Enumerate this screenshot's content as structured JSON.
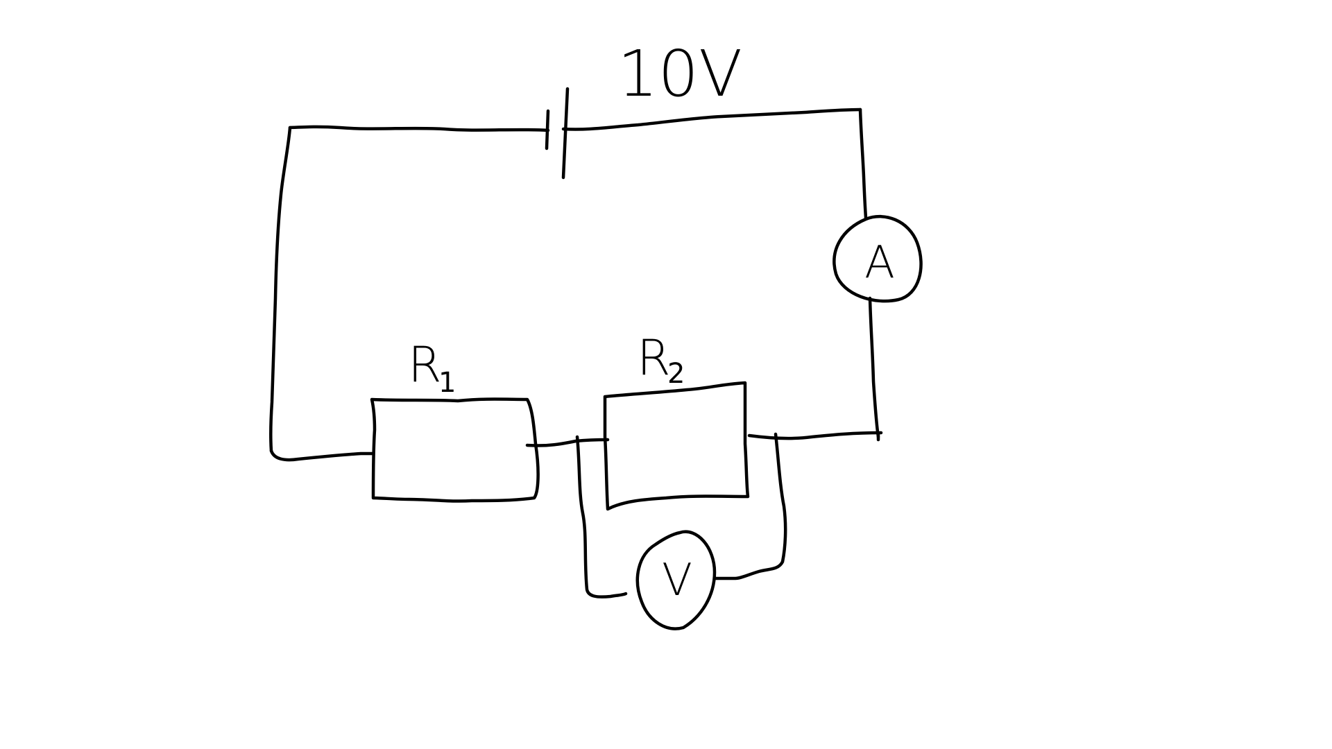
{
  "circuit": {
    "battery": {
      "label": "10V"
    },
    "resistor1": {
      "label": "R",
      "subscript": "1"
    },
    "resistor2": {
      "label": "R",
      "subscript": "2"
    },
    "ammeter": {
      "label": "A"
    },
    "voltmeter": {
      "label": "V"
    }
  },
  "colors": {
    "ink": "#000000",
    "background": "#ffffff"
  }
}
